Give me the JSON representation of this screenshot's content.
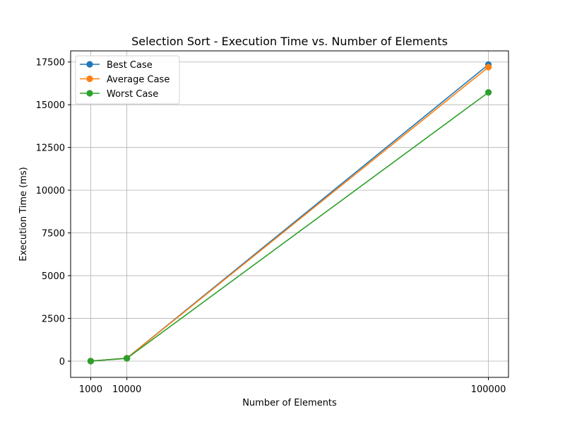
{
  "chart_data": {
    "type": "line",
    "title": "Selection Sort - Execution Time vs. Number of Elements",
    "xlabel": "Number of Elements",
    "ylabel": "Execution Time (ms)",
    "x": [
      1000,
      10000,
      100000
    ],
    "xticks": [
      1000,
      10000,
      100000
    ],
    "yticks": [
      0,
      2500,
      5000,
      7500,
      10000,
      12500,
      15000,
      17500
    ],
    "xlim": [
      -4000,
      105000
    ],
    "ylim": [
      -950,
      18150
    ],
    "grid": true,
    "legend_position": "top-left",
    "series": [
      {
        "name": "Best Case",
        "color": "#1f77b4",
        "values": [
          2,
          175,
          17350
        ]
      },
      {
        "name": "Average Case",
        "color": "#ff7f0e",
        "values": [
          2,
          170,
          17200
        ]
      },
      {
        "name": "Worst Case",
        "color": "#2ca02c",
        "values": [
          2,
          160,
          15720
        ]
      }
    ]
  }
}
